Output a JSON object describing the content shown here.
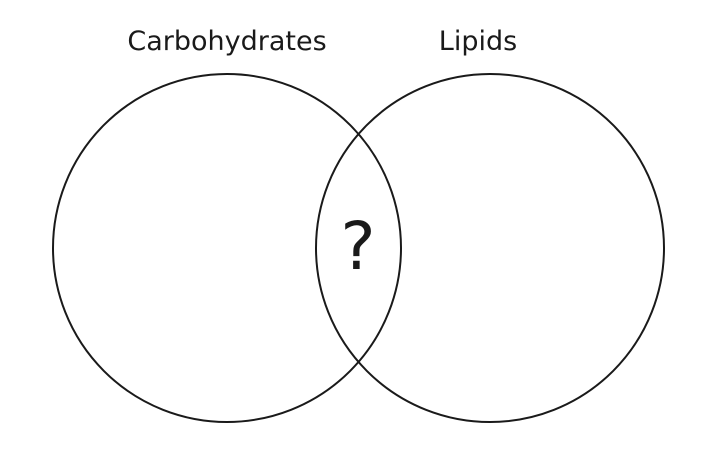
{
  "venn": {
    "left_set": {
      "label": "Carbohydrates"
    },
    "right_set": {
      "label": "Lipids"
    },
    "intersection": {
      "label": "?"
    }
  },
  "colors": {
    "stroke": "#1a1a1a",
    "background": "#ffffff"
  }
}
